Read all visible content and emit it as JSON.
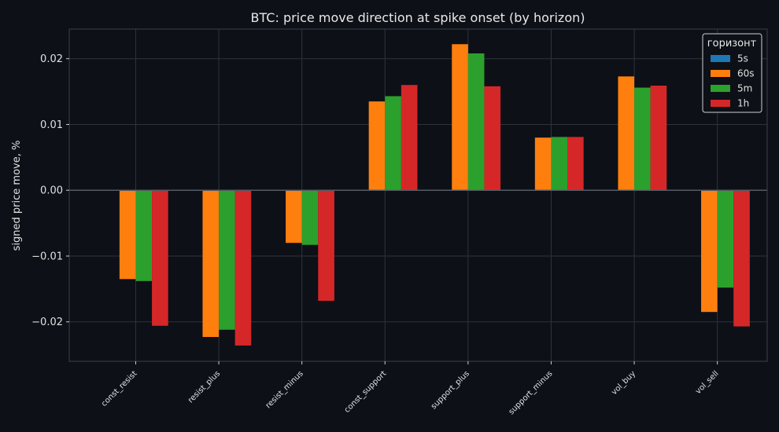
{
  "chart_data": {
    "type": "bar",
    "title": "BTC: price move direction at spike onset (by horizon)",
    "xlabel": "",
    "ylabel": "signed price move, %",
    "ylim": [
      -0.026,
      0.0245
    ],
    "yticks": [
      -0.02,
      -0.01,
      0.0,
      0.01,
      0.02
    ],
    "ytick_labels": [
      "−0.02",
      "−0.01",
      "0.00",
      "0.01",
      "0.02"
    ],
    "grid": true,
    "legend": {
      "title": "горизонт",
      "placement": "top-right"
    },
    "categories": [
      "const_resist",
      "resist_plus",
      "resist_minus",
      "const_support",
      "support_plus",
      "support_minus",
      "vol_buy",
      "vol_sell"
    ],
    "series": [
      {
        "name": "5s",
        "color": "#1f77b4",
        "values": [
          0,
          0,
          0,
          0,
          0,
          0,
          0,
          0
        ]
      },
      {
        "name": "60s",
        "color": "#ff7f0e",
        "values": [
          -0.0135,
          -0.0223,
          -0.008,
          0.0135,
          0.0222,
          0.008,
          0.0173,
          -0.0185
        ]
      },
      {
        "name": "5m",
        "color": "#2ca02c",
        "values": [
          -0.0138,
          -0.0212,
          -0.0083,
          0.0143,
          0.0208,
          0.0081,
          0.0156,
          -0.0148
        ]
      },
      {
        "name": "1h",
        "color": "#d62728",
        "values": [
          -0.0206,
          -0.0236,
          -0.0168,
          0.016,
          0.0158,
          0.0081,
          0.0159,
          -0.0207
        ]
      }
    ]
  }
}
